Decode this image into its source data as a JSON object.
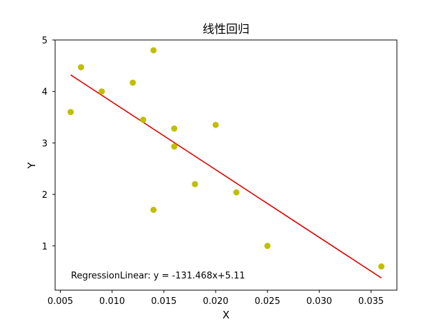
{
  "chart_data": {
    "type": "scatter",
    "title": "线性回归",
    "xlabel": "X",
    "ylabel": "Y",
    "xlim": [
      0.0045,
      0.0375
    ],
    "ylim": [
      0.14,
      5.0
    ],
    "xticks": [
      "0.005",
      "0.010",
      "0.015",
      "0.020",
      "0.025",
      "0.030",
      "0.035"
    ],
    "xtick_values": [
      0.005,
      0.01,
      0.015,
      0.02,
      0.025,
      0.03,
      0.035
    ],
    "yticks": [
      "1",
      "2",
      "3",
      "4",
      "5"
    ],
    "ytick_values": [
      1,
      2,
      3,
      4,
      5
    ],
    "grid": false,
    "points": [
      {
        "x": 0.006,
        "y": 3.6
      },
      {
        "x": 0.007,
        "y": 4.47
      },
      {
        "x": 0.009,
        "y": 4.0
      },
      {
        "x": 0.012,
        "y": 4.17
      },
      {
        "x": 0.013,
        "y": 3.45
      },
      {
        "x": 0.014,
        "y": 4.8
      },
      {
        "x": 0.014,
        "y": 1.7
      },
      {
        "x": 0.016,
        "y": 3.28
      },
      {
        "x": 0.016,
        "y": 2.93
      },
      {
        "x": 0.018,
        "y": 2.2
      },
      {
        "x": 0.02,
        "y": 3.35
      },
      {
        "x": 0.022,
        "y": 2.04
      },
      {
        "x": 0.025,
        "y": 1.0
      },
      {
        "x": 0.036,
        "y": 0.6
      }
    ],
    "regression": {
      "slope": -131.468,
      "intercept": 5.11,
      "x_range": [
        0.006,
        0.036
      ]
    },
    "annotation": "RegressionLinear: y = -131.468x+5.11",
    "colors": {
      "points": "#bfbf00",
      "line": "#e00000",
      "axes": "#000000"
    }
  }
}
